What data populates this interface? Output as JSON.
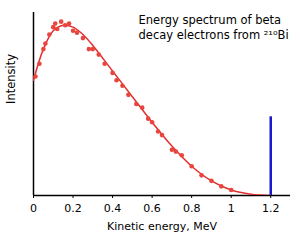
{
  "chart_data": {
    "type": "scatter",
    "annotation": [
      "Energy spectrum of beta",
      "decay electrons from ²¹⁰Bi"
    ],
    "x_label": "Kinetic energy, MeV",
    "y_label": "Intensity",
    "x": [
      0.01,
      0.03,
      0.05,
      0.06,
      0.08,
      0.1,
      0.11,
      0.12,
      0.14,
      0.16,
      0.18,
      0.2,
      0.22,
      0.25,
      0.28,
      0.3,
      0.33,
      0.36,
      0.4,
      0.42,
      0.45,
      0.48,
      0.52,
      0.55,
      0.58,
      0.6,
      0.63,
      0.65,
      0.7,
      0.72,
      0.75,
      0.8,
      0.85,
      0.9,
      0.95,
      1.0
    ],
    "values": [
      65,
      72,
      80,
      83,
      88,
      92,
      94,
      91,
      95,
      93,
      94,
      90,
      89,
      86,
      80,
      80,
      77,
      72,
      67,
      63,
      60,
      55,
      50,
      48,
      42,
      40,
      35,
      33,
      25,
      24,
      22,
      16,
      11,
      8,
      5,
      3
    ],
    "color": "#e8453c",
    "marker": "circle",
    "curve": {
      "x": [
        0,
        0.05,
        0.1,
        0.15,
        0.2,
        0.25,
        0.3,
        0.4,
        0.5,
        0.6,
        0.7,
        0.8,
        0.9,
        1.0,
        1.1,
        1.2
      ],
      "values": [
        63,
        80,
        90,
        93,
        92,
        88,
        82,
        68,
        54,
        40,
        27,
        16,
        8,
        3,
        0.7,
        0
      ],
      "color": "#e03030",
      "line_style": "solid"
    },
    "vline": {
      "x": 1.2,
      "y_end": 43,
      "color": "#1a1acc"
    },
    "xlim": [
      0,
      1.3
    ],
    "xticks": [
      0,
      0.2,
      0.4,
      0.6,
      0.8,
      1.0,
      1.2
    ],
    "ylim": [
      0,
      100
    ],
    "tick_labels": "x",
    "grid": false
  }
}
